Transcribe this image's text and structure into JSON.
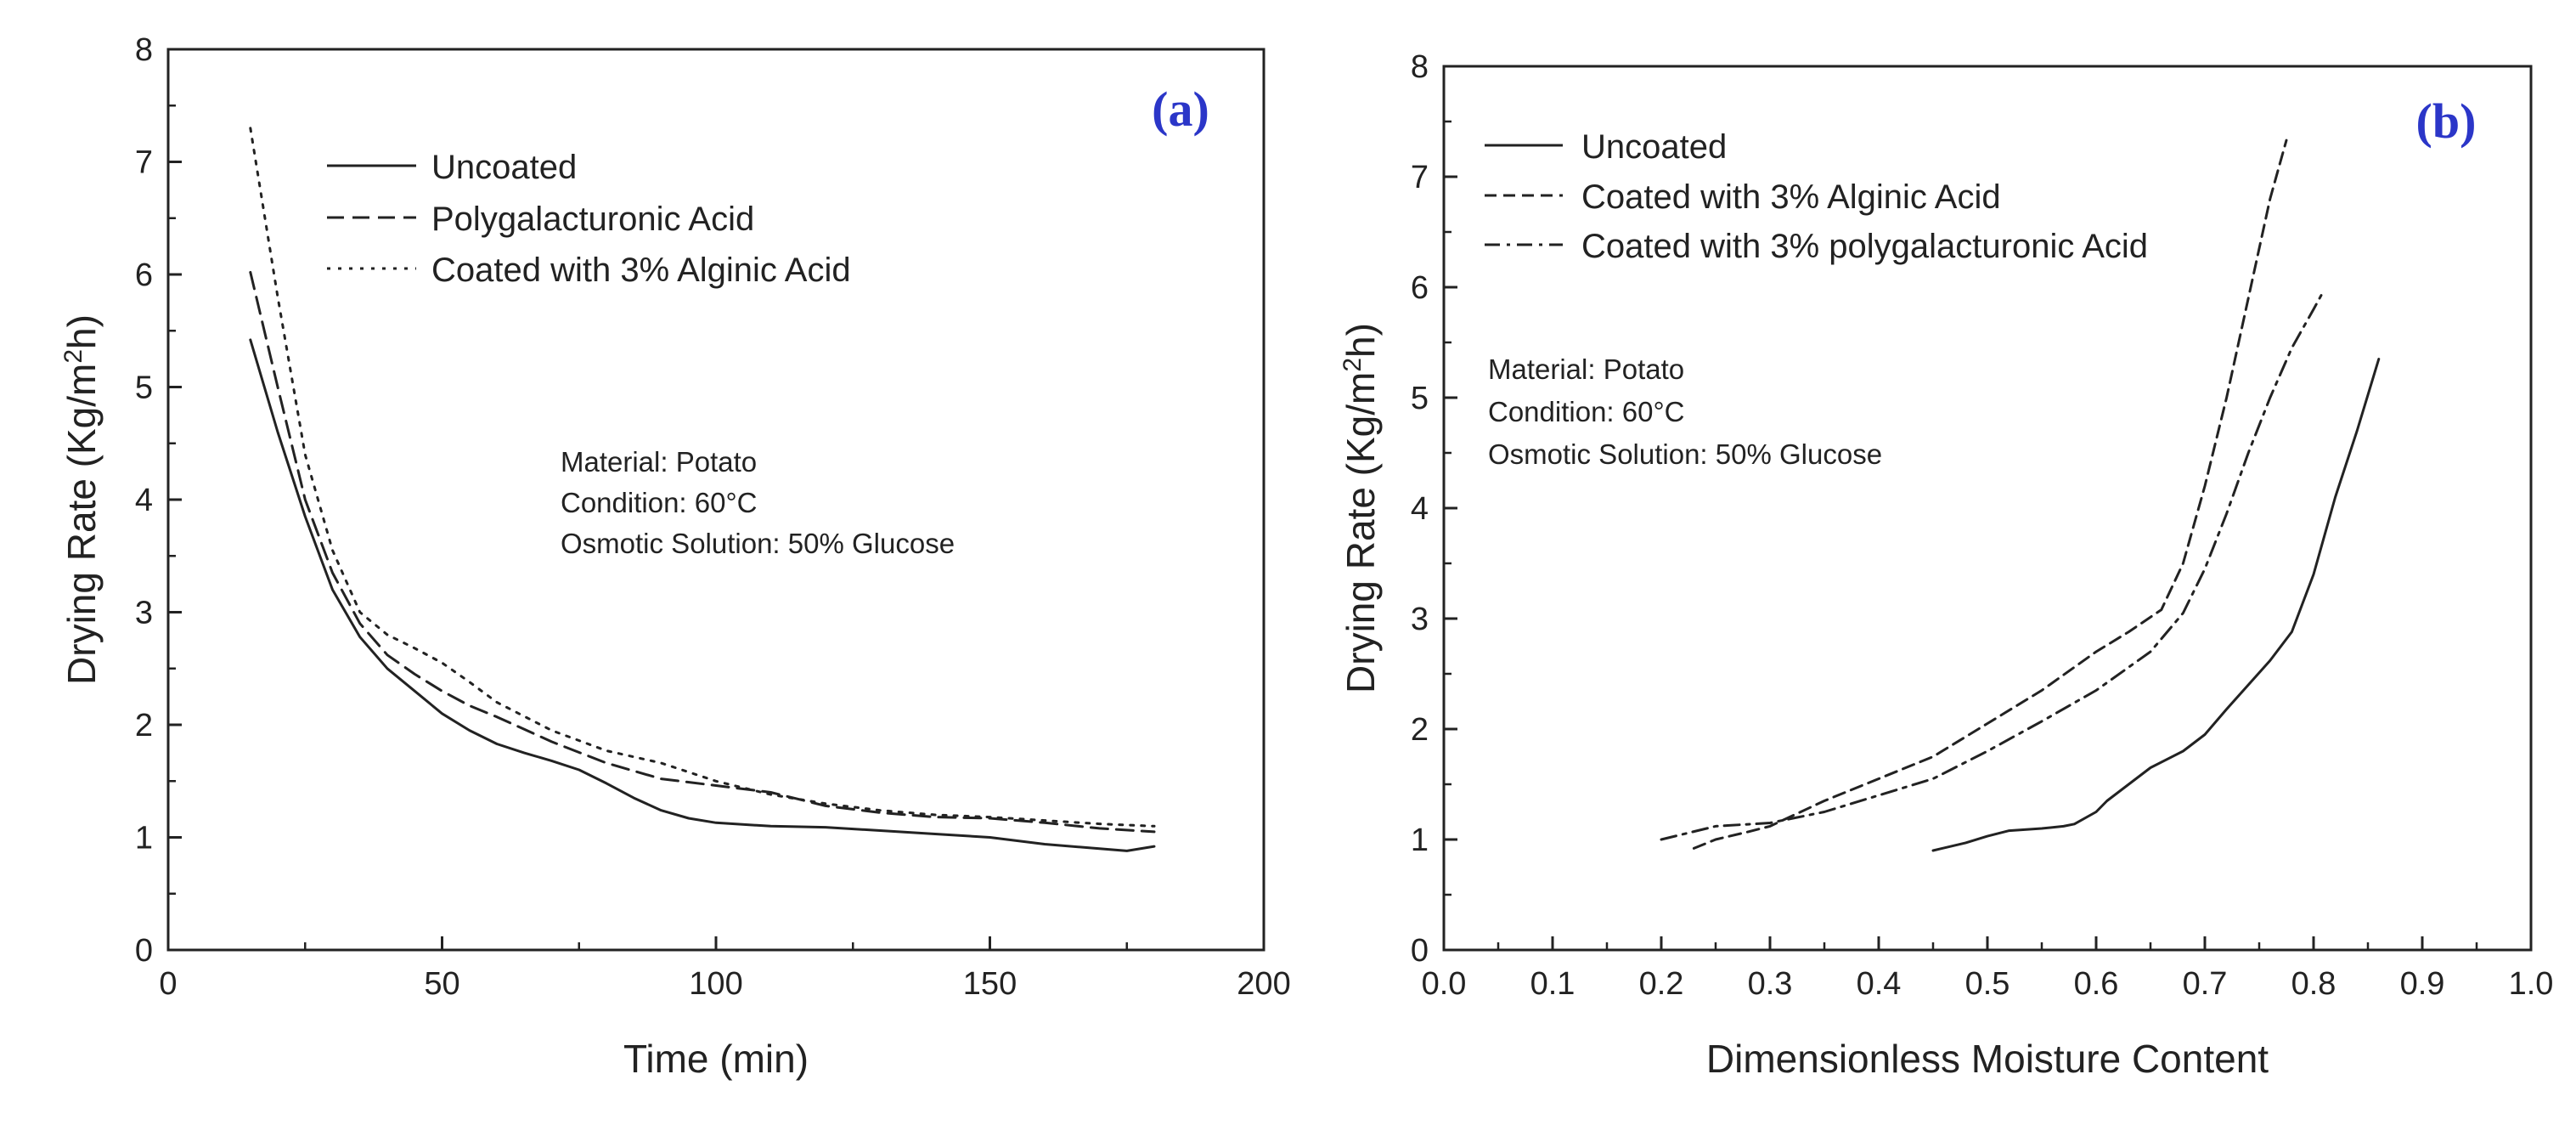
{
  "chart_data": [
    {
      "type": "line",
      "panel_label": "(a)",
      "xlabel": "Time (min)",
      "ylabel": "Drying Rate (Kg/m²h)",
      "ylabel_parts": {
        "base": "Drying Rate (Kg/m",
        "sup": "2",
        "tail": "h)"
      },
      "xlim": [
        0,
        200
      ],
      "ylim": [
        0,
        8
      ],
      "xticks": [
        0,
        50,
        100,
        150,
        200
      ],
      "xtick_labels": [
        "0",
        "50",
        "100",
        "150",
        "200"
      ],
      "yticks": [
        0,
        1,
        2,
        3,
        4,
        5,
        6,
        7,
        8
      ],
      "ytick_labels": [
        "0",
        "1",
        "2",
        "3",
        "4",
        "5",
        "6",
        "7",
        "8"
      ],
      "grid": false,
      "legend_position": "top-left",
      "annotation": [
        "Material: Potato",
        "Condition: 60°C",
        "Osmotic Solution: 50% Glucose"
      ],
      "series": [
        {
          "name": "Uncoated",
          "style": "solid",
          "x": [
            15,
            20,
            25,
            30,
            35,
            40,
            45,
            50,
            55,
            60,
            65,
            70,
            75,
            80,
            85,
            90,
            95,
            100,
            110,
            120,
            130,
            140,
            150,
            160,
            170,
            175,
            180
          ],
          "y": [
            5.42,
            4.6,
            3.85,
            3.2,
            2.78,
            2.5,
            2.3,
            2.1,
            1.95,
            1.83,
            1.75,
            1.68,
            1.6,
            1.48,
            1.35,
            1.24,
            1.17,
            1.13,
            1.1,
            1.09,
            1.06,
            1.03,
            1.0,
            0.94,
            0.9,
            0.88,
            0.92
          ]
        },
        {
          "name": "Polygalacturonic Acid",
          "style": "dashed",
          "x": [
            15,
            20,
            25,
            30,
            35,
            40,
            45,
            50,
            55,
            60,
            70,
            80,
            90,
            100,
            110,
            120,
            130,
            140,
            150,
            160,
            170,
            180
          ],
          "y": [
            6.02,
            5.0,
            4.0,
            3.35,
            2.9,
            2.62,
            2.45,
            2.3,
            2.17,
            2.07,
            1.85,
            1.66,
            1.52,
            1.46,
            1.4,
            1.28,
            1.22,
            1.18,
            1.17,
            1.13,
            1.08,
            1.05
          ]
        },
        {
          "name": "Coated with 3% Alginic Acid",
          "style": "dotted",
          "x": [
            15,
            20,
            25,
            30,
            35,
            40,
            45,
            50,
            55,
            60,
            70,
            80,
            90,
            100,
            110,
            120,
            130,
            140,
            150,
            160,
            170,
            180
          ],
          "y": [
            7.3,
            5.8,
            4.4,
            3.55,
            3.0,
            2.8,
            2.68,
            2.55,
            2.38,
            2.2,
            1.95,
            1.77,
            1.66,
            1.5,
            1.38,
            1.3,
            1.24,
            1.2,
            1.18,
            1.15,
            1.12,
            1.1
          ]
        }
      ]
    },
    {
      "type": "line",
      "panel_label": "(b)",
      "xlabel": "Dimensionless Moisture Content",
      "ylabel": "Drying Rate (Kg/m²h)",
      "ylabel_parts": {
        "base": "Drying Rate (Kg/m",
        "sup": "2",
        "tail": "h)"
      },
      "xlim": [
        0,
        1.0
      ],
      "ylim": [
        0,
        8
      ],
      "xticks": [
        0,
        0.1,
        0.2,
        0.3,
        0.4,
        0.5,
        0.6,
        0.7,
        0.8,
        0.9,
        1.0
      ],
      "xtick_labels": [
        "0.0",
        "0.1",
        "0.2",
        "0.3",
        "0.4",
        "0.5",
        "0.6",
        "0.7",
        "0.8",
        "0.9",
        "1.0"
      ],
      "yticks": [
        0,
        1,
        2,
        3,
        4,
        5,
        6,
        7,
        8
      ],
      "ytick_labels": [
        "0",
        "1",
        "2",
        "3",
        "4",
        "5",
        "6",
        "7",
        "8"
      ],
      "grid": false,
      "legend_position": "top-left",
      "annotation": [
        "Material: Potato",
        "Condition: 60°C",
        "Osmotic Solution: 50% Glucose"
      ],
      "series": [
        {
          "name": "Uncoated",
          "style": "solid",
          "x": [
            0.45,
            0.48,
            0.5,
            0.52,
            0.55,
            0.57,
            0.58,
            0.6,
            0.61,
            0.63,
            0.65,
            0.68,
            0.7,
            0.72,
            0.74,
            0.76,
            0.78,
            0.8,
            0.82,
            0.84,
            0.86
          ],
          "y": [
            0.9,
            0.97,
            1.03,
            1.08,
            1.1,
            1.12,
            1.14,
            1.25,
            1.35,
            1.5,
            1.65,
            1.8,
            1.95,
            2.18,
            2.4,
            2.62,
            2.88,
            3.4,
            4.1,
            4.7,
            5.35
          ]
        },
        {
          "name": "Coated with 3% Alginic Acid",
          "style": "dashed",
          "x": [
            0.23,
            0.25,
            0.28,
            0.3,
            0.35,
            0.4,
            0.45,
            0.5,
            0.55,
            0.6,
            0.63,
            0.66,
            0.68,
            0.7,
            0.72,
            0.74,
            0.76,
            0.775
          ],
          "y": [
            0.92,
            1.0,
            1.07,
            1.12,
            1.35,
            1.55,
            1.75,
            2.05,
            2.35,
            2.7,
            2.88,
            3.08,
            3.5,
            4.2,
            5.0,
            5.9,
            6.8,
            7.33
          ]
        },
        {
          "name": "Coated with 3% polygalacturonic Acid",
          "style": "dashdot",
          "x": [
            0.2,
            0.25,
            0.3,
            0.35,
            0.4,
            0.45,
            0.5,
            0.55,
            0.6,
            0.65,
            0.68,
            0.7,
            0.72,
            0.74,
            0.76,
            0.78,
            0.8,
            0.81
          ],
          "y": [
            1.0,
            1.12,
            1.15,
            1.25,
            1.4,
            1.55,
            1.8,
            2.07,
            2.35,
            2.7,
            3.05,
            3.45,
            3.95,
            4.5,
            5.0,
            5.45,
            5.8,
            5.98
          ]
        }
      ]
    }
  ]
}
